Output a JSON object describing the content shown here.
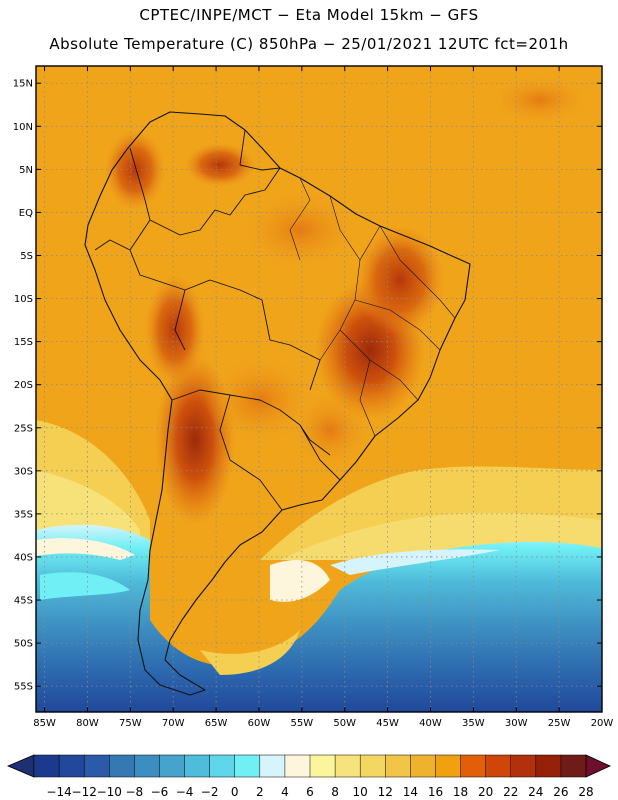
{
  "title_line1": "CPTEC/INPE/MCT −  Eta Model 15km − GFS",
  "title_line2": "Absolute Temperature (C) 850hPa − 25/01/2021 12UTC fct=201h",
  "map": {
    "region": "South America",
    "variable": "Absolute Temperature (C) 850hPa",
    "lon_range": [
      -86,
      -20
    ],
    "lat_range": [
      -58,
      17
    ],
    "lat_labels": [
      {
        "lat": 15,
        "text": "15N"
      },
      {
        "lat": 10,
        "text": "10N"
      },
      {
        "lat": 5,
        "text": "5N"
      },
      {
        "lat": 0,
        "text": "EQ"
      },
      {
        "lat": -5,
        "text": "5S"
      },
      {
        "lat": -10,
        "text": "10S"
      },
      {
        "lat": -15,
        "text": "15S"
      },
      {
        "lat": -20,
        "text": "20S"
      },
      {
        "lat": -25,
        "text": "25S"
      },
      {
        "lat": -30,
        "text": "30S"
      },
      {
        "lat": -35,
        "text": "35S"
      },
      {
        "lat": -40,
        "text": "40S"
      },
      {
        "lat": -45,
        "text": "45S"
      },
      {
        "lat": -50,
        "text": "50S"
      },
      {
        "lat": -55,
        "text": "55S"
      }
    ],
    "lon_labels": [
      {
        "lon": -85,
        "text": "85W"
      },
      {
        "lon": -80,
        "text": "80W"
      },
      {
        "lon": -75,
        "text": "75W"
      },
      {
        "lon": -70,
        "text": "70W"
      },
      {
        "lon": -65,
        "text": "65W"
      },
      {
        "lon": -60,
        "text": "60W"
      },
      {
        "lon": -55,
        "text": "55W"
      },
      {
        "lon": -50,
        "text": "50W"
      },
      {
        "lon": -45,
        "text": "45W"
      },
      {
        "lon": -40,
        "text": "40W"
      },
      {
        "lon": -35,
        "text": "35W"
      },
      {
        "lon": -30,
        "text": "30W"
      },
      {
        "lon": -25,
        "text": "25W"
      },
      {
        "lon": -20,
        "text": "20W"
      }
    ]
  },
  "colorbar": {
    "labels": [
      "−14",
      "−12",
      "−10",
      "−8",
      "−6",
      "−4",
      "−2",
      "0",
      "2",
      "4",
      "6",
      "8",
      "10",
      "12",
      "14",
      "16",
      "18",
      "20",
      "22",
      "24",
      "26",
      "28"
    ],
    "colors": [
      "#1b3a8e",
      "#21489a",
      "#2b5ba8",
      "#3578b4",
      "#3d8ec0",
      "#46a4cc",
      "#4fbcdb",
      "#5fd6ea",
      "#70f0f5",
      "#d6f4fb",
      "#fdf6dc",
      "#fbf59b",
      "#f6e37d",
      "#f4d763",
      "#f1c646",
      "#efb22c",
      "#f0a110",
      "#e35e08",
      "#cf4608",
      "#b3300c",
      "#962109",
      "#701b18"
    ],
    "low_arrow_color": "#1f2f73",
    "high_arrow_color": "#6e0f2e"
  }
}
